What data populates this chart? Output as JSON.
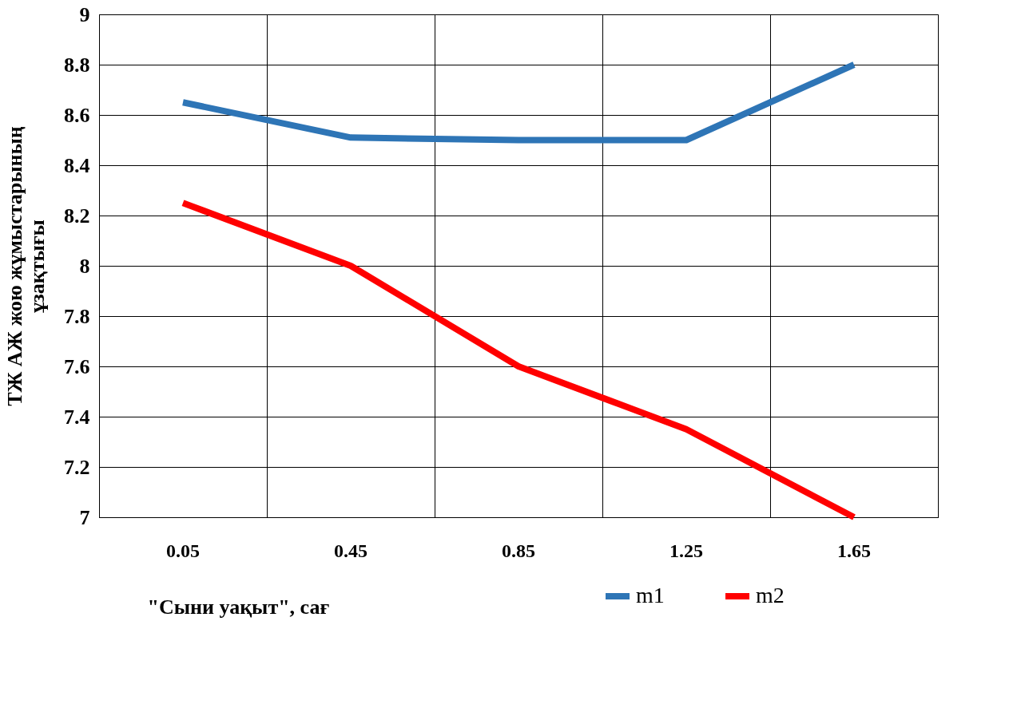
{
  "chart_data": {
    "type": "line",
    "xlabel": "\"Сыни уақыт\", сағ",
    "ylabel": "ТЖ АЖ жою жұмыстарының ұзақтығы",
    "categories": [
      "0.05",
      "0.45",
      "0.85",
      "1.25",
      "1.65"
    ],
    "series": [
      {
        "name": "m1",
        "color": "#2e75b6",
        "values": [
          8.65,
          8.51,
          8.5,
          8.5,
          8.8
        ]
      },
      {
        "name": "m2",
        "color": "#ff0000",
        "values": [
          8.25,
          8.0,
          7.6,
          7.35,
          7.0
        ]
      }
    ],
    "ylim": [
      7,
      9
    ],
    "yticks": [
      7,
      7.2,
      7.4,
      7.6,
      7.8,
      8,
      8.2,
      8.4,
      8.6,
      8.8,
      9
    ],
    "grid": true,
    "legend": "bottom right",
    "marker": "none",
    "line_style": "solid"
  }
}
